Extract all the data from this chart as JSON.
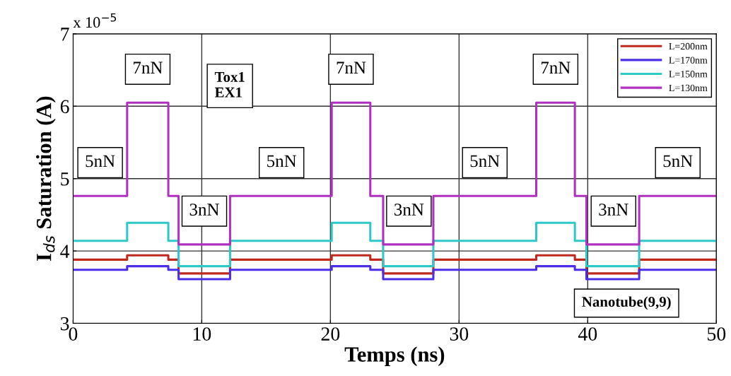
{
  "chart_data": {
    "type": "step",
    "xlabel": "Temps (ns)",
    "ylabel": "I$_{ds}$ Saturation (A)",
    "x": [
      0,
      4.2,
      7.4,
      8.2,
      12.2,
      20.1,
      23.1,
      24.1,
      28.0,
      36.0,
      39.0,
      39.9,
      44.0,
      50
    ],
    "series": [
      {
        "name": "L=200nm",
        "color": "#c0281e",
        "values": [
          3.88,
          3.94,
          3.88,
          3.69,
          3.88,
          3.94,
          3.88,
          3.69,
          3.88,
          3.94,
          3.88,
          3.69,
          3.88,
          3.88
        ]
      },
      {
        "name": "L=170nm",
        "color": "#4a2ee8",
        "values": [
          3.74,
          3.79,
          3.74,
          3.61,
          3.74,
          3.79,
          3.74,
          3.61,
          3.74,
          3.79,
          3.74,
          3.61,
          3.74,
          3.74
        ]
      },
      {
        "name": "L=150nm",
        "color": "#2ec8c8",
        "values": [
          4.14,
          4.39,
          4.14,
          3.79,
          4.14,
          4.39,
          4.14,
          3.79,
          4.14,
          4.39,
          4.14,
          3.79,
          4.14,
          4.14
        ]
      },
      {
        "name": "L=130nm",
        "color": "#b030c0",
        "values": [
          4.76,
          6.05,
          4.76,
          4.09,
          4.76,
          6.05,
          4.76,
          4.09,
          4.76,
          6.05,
          4.76,
          4.09,
          4.76,
          4.76
        ]
      }
    ],
    "xlim": [
      0,
      50
    ],
    "xticks": [
      0,
      10,
      20,
      30,
      40,
      50
    ],
    "ylim": [
      3,
      7
    ],
    "yticks": [
      3,
      4,
      5,
      6,
      7
    ],
    "annotations": [
      "x 10$^{−5}$",
      "Tox1\nEX1",
      "Nanotube(9,9)",
      {
        "text": "5nN",
        "x": 2.1,
        "y": 4.76
      },
      {
        "text": "7nN",
        "x": 5.8,
        "y": 6.05
      },
      {
        "text": "3nN",
        "x": 10.2,
        "y": 4.09
      },
      {
        "text": "5nN",
        "x": 16.2,
        "y": 4.76
      },
      {
        "text": "7nN",
        "x": 21.6,
        "y": 6.05
      },
      {
        "text": "3nN",
        "x": 26.1,
        "y": 4.09
      },
      {
        "text": "5nN",
        "x": 32.0,
        "y": 4.76
      },
      {
        "text": "7nN",
        "x": 37.5,
        "y": 6.05
      },
      {
        "text": "3nN",
        "x": 42.0,
        "y": 4.09
      },
      {
        "text": "5nN",
        "x": 47.0,
        "y": 4.76
      }
    ],
    "grid": true,
    "legend": "top right",
    "line_style": "solid",
    "marker": "none"
  }
}
